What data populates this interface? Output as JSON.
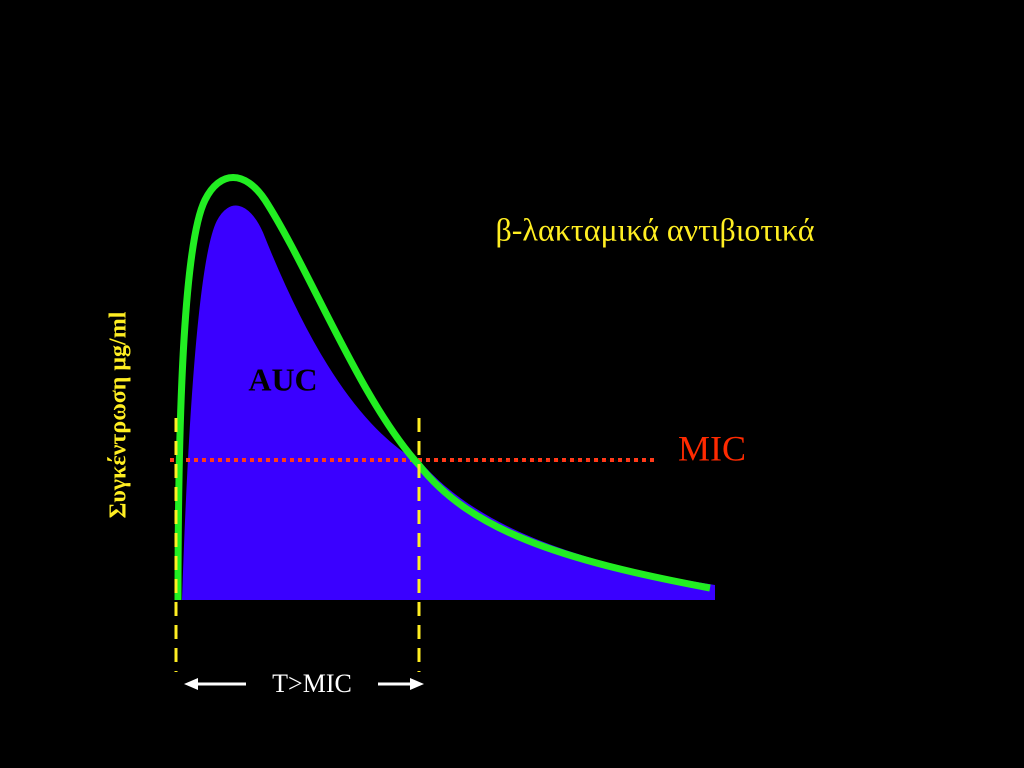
{
  "title": "β-λακταμικά αντιβιοτικά",
  "y_axis_label": "Συγκέντρωση μg/ml",
  "labels": {
    "auc": "AUC",
    "mic": "MIC",
    "t_over_mic": "T>MIC"
  }
}
